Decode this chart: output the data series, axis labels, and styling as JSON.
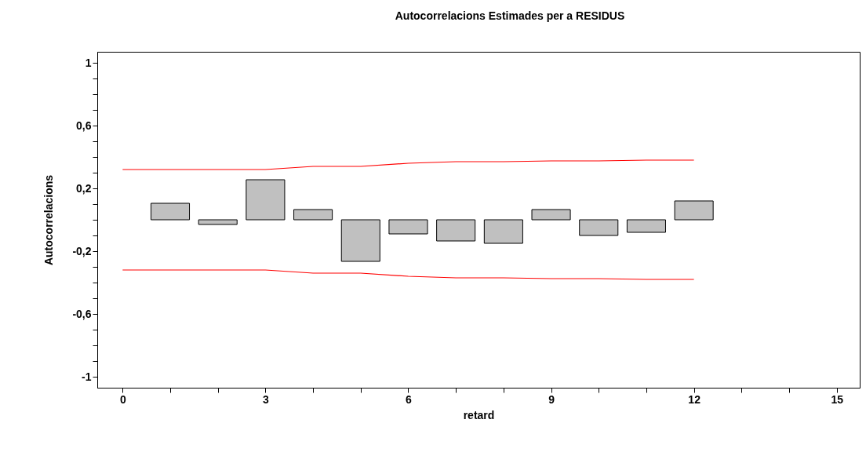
{
  "chart_data": {
    "type": "bar",
    "title": "Autocorrelacions Estimades per a RESIDUS",
    "xlabel": "retard",
    "ylabel": "Autocorrelacions",
    "series": [
      {
        "color": "#c0c0c0",
        "x": [
          1,
          2,
          3,
          4,
          5,
          6,
          7,
          8,
          9,
          10,
          11,
          12
        ],
        "values": [
          0.105,
          -0.03,
          0.255,
          0.065,
          -0.265,
          -0.09,
          -0.135,
          -0.15,
          0.065,
          -0.1,
          -0.08,
          0.12
        ]
      },
      {
        "type": "line",
        "color": "#ff0000",
        "x": [
          0,
          1,
          2,
          3,
          4,
          5,
          6,
          7,
          8,
          9,
          10,
          11,
          12
        ],
        "values": [
          0.32,
          0.32,
          0.32,
          0.32,
          0.34,
          0.34,
          0.36,
          0.37,
          0.37,
          0.375,
          0.375,
          0.38,
          0.38
        ]
      },
      {
        "type": "line",
        "color": "#ff0000",
        "x": [
          0,
          1,
          2,
          3,
          4,
          5,
          6,
          7,
          8,
          9,
          10,
          11,
          12
        ],
        "values": [
          -0.32,
          -0.32,
          -0.32,
          -0.32,
          -0.34,
          -0.34,
          -0.36,
          -0.37,
          -0.37,
          -0.375,
          -0.375,
          -0.38,
          -0.38
        ]
      }
    ],
    "xlim": [
      -0.45,
      15.4
    ],
    "ylim": [
      -1.07,
      1.07
    ],
    "xticks": [
      0,
      {
        "value": 1,
        "label": null
      },
      {
        "value": 2,
        "label": null
      },
      3,
      {
        "value": 4,
        "label": null
      },
      {
        "value": 5,
        "label": null
      },
      6,
      {
        "value": 7,
        "label": null
      },
      {
        "value": 8,
        "label": null
      },
      9,
      {
        "value": 10,
        "label": null
      },
      {
        "value": 11,
        "label": null
      },
      12,
      {
        "value": 13,
        "label": null
      },
      {
        "value": 14,
        "label": null
      },
      15
    ],
    "yticks": [
      -1,
      {
        "value": -0.9,
        "label": null
      },
      {
        "value": -0.8,
        "label": null
      },
      {
        "value": -0.7,
        "label": null
      },
      {
        "value": -0.6,
        "label": "-0,6"
      },
      {
        "value": -0.5,
        "label": null
      },
      {
        "value": -0.4,
        "label": null
      },
      {
        "value": -0.3,
        "label": null
      },
      {
        "value": -0.2,
        "label": "-0,2"
      },
      {
        "value": -0.1,
        "label": null
      },
      {
        "value": 0,
        "label": null
      },
      {
        "value": 0.1,
        "label": null
      },
      {
        "value": 0.2,
        "label": "0,2"
      },
      {
        "value": 0.3,
        "label": null
      },
      {
        "value": 0.4,
        "label": null
      },
      {
        "value": 0.5,
        "label": null
      },
      {
        "value": 0.6,
        "label": "0,6"
      },
      {
        "value": 0.7,
        "label": null
      },
      {
        "value": 0.8,
        "label": null
      },
      {
        "value": 0.9,
        "label": null
      },
      1
    ],
    "grid": false
  }
}
